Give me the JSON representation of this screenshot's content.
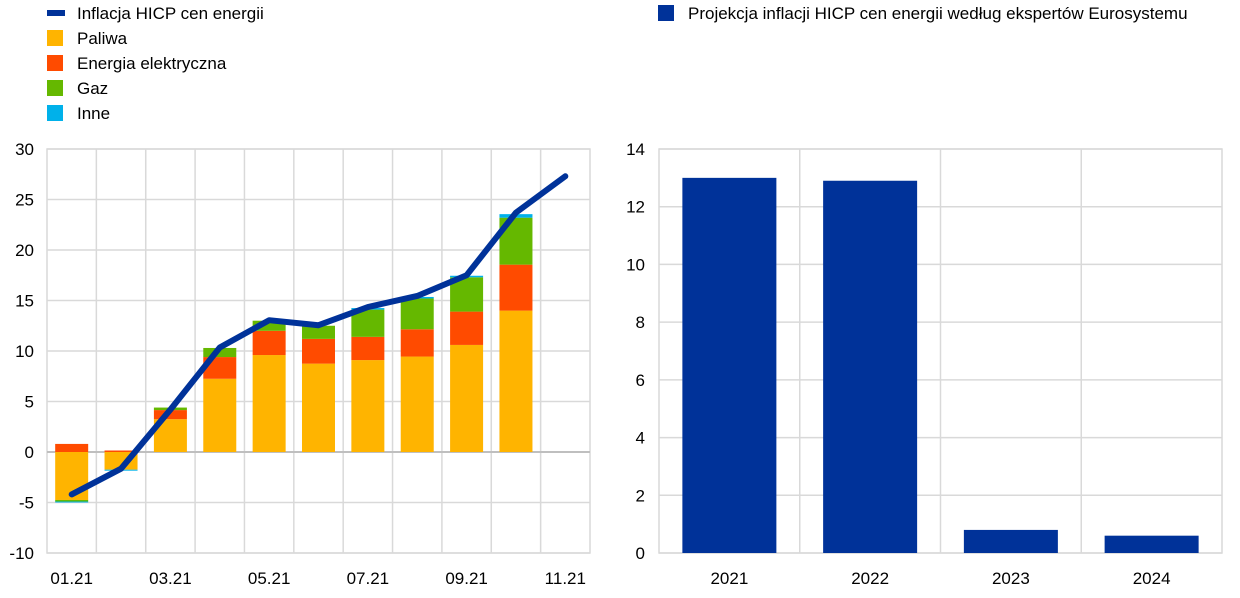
{
  "chart_data": [
    {
      "type": "bar",
      "stacked": true,
      "categories": [
        "01.21",
        "02.21",
        "03.21",
        "04.21",
        "05.21",
        "06.21",
        "07.21",
        "08.21",
        "09.21",
        "10.21",
        "11.21"
      ],
      "tick_labels": [
        "01.21",
        "03.21",
        "05.21",
        "07.21",
        "09.21",
        "11.21"
      ],
      "ylim": [
        -10,
        30
      ],
      "yticks": [
        -10,
        -5,
        0,
        5,
        10,
        15,
        20,
        25,
        30
      ],
      "grid": true,
      "legend_position": "top-left",
      "series": [
        {
          "name": "Paliwa",
          "kind": "bar",
          "color": "#ffb400",
          "values": [
            -4.75,
            -1.75,
            3.25,
            7.25,
            9.6,
            8.75,
            9.1,
            9.45,
            10.6,
            14.0,
            null
          ]
        },
        {
          "name": "Energia elektryczna",
          "kind": "bar",
          "color": "#ff4b00",
          "values": [
            0.8,
            0.15,
            0.9,
            2.15,
            2.4,
            2.45,
            2.3,
            2.7,
            3.3,
            4.55,
            null
          ]
        },
        {
          "name": "Gaz",
          "kind": "bar",
          "color": "#65b800",
          "values": [
            -0.15,
            0,
            0.25,
            0.9,
            1.0,
            1.3,
            2.7,
            3.05,
            3.4,
            4.65,
            null
          ]
        },
        {
          "name": "Inne",
          "kind": "bar",
          "color": "#00b1ea",
          "values": [
            -0.1,
            -0.1,
            0,
            0,
            0,
            0,
            0.15,
            0.15,
            0.15,
            0.35,
            null
          ]
        },
        {
          "name": "Inflacja HICP cen energii",
          "kind": "line",
          "color": "#003299",
          "values": [
            -4.2,
            -1.65,
            4.2,
            10.35,
            13.05,
            12.55,
            14.35,
            15.45,
            17.5,
            23.7,
            27.3
          ]
        }
      ]
    },
    {
      "type": "bar",
      "categories": [
        "2021",
        "2022",
        "2023",
        "2024"
      ],
      "ylim": [
        0,
        14
      ],
      "yticks": [
        0,
        2,
        4,
        6,
        8,
        10,
        12,
        14
      ],
      "grid": true,
      "legend_position": "top",
      "series": [
        {
          "name": "Projekcja inflacji HICP cen energii według ekspertów Eurosystemu",
          "color": "#003299",
          "values": [
            13.0,
            12.9,
            0.8,
            0.6
          ]
        }
      ]
    }
  ]
}
